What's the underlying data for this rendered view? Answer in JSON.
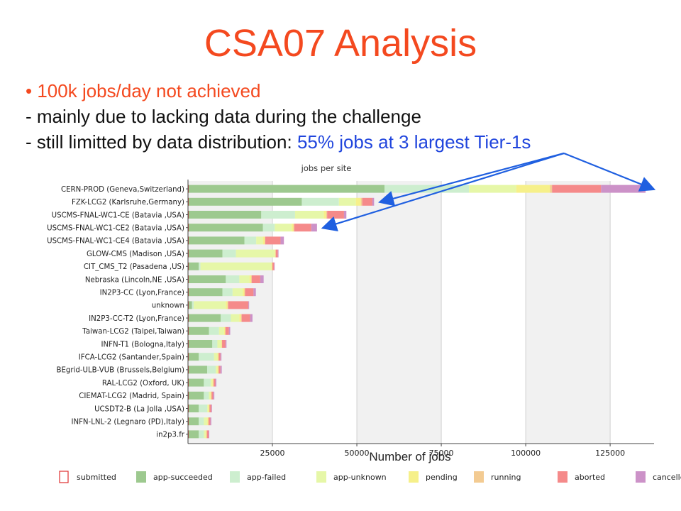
{
  "slide": {
    "title": "CSA07 Analysis",
    "bullet_marker": "•",
    "bullet_1": "100k jobs/day not achieved",
    "line_2": "- mainly due to lacking data during the challenge",
    "line_3_prefix": "- still limitted by data distribution: ",
    "line_3_highlight": "55% jobs at 3 largest Tier-1s"
  },
  "colors": {
    "title": "#f4491f",
    "highlight": "#2045dd",
    "arrow": "#1f5fe0"
  },
  "chart_data": {
    "type": "bar",
    "orientation": "horizontal",
    "stacked": true,
    "title": "jobs per site",
    "xlabel": "Number of jobs",
    "xlim": [
      0,
      138000
    ],
    "xticks": [
      25000,
      50000,
      75000,
      100000,
      125000
    ],
    "grid": true,
    "legend_position": "bottom",
    "categories": [
      "CERN-PROD (Geneva,Switzerland)",
      "FZK-LCG2 (Karlsruhe,Germany)",
      "USCMS-FNAL-WC1-CE (Batavia ,USA)",
      "USCMS-FNAL-WC1-CE2 (Batavia ,USA)",
      "USCMS-FNAL-WC1-CE4 (Batavia ,USA)",
      "GLOW-CMS (Madison ,USA)",
      "CIT_CMS_T2 (Pasadena ,US)",
      "Nebraska (Lincoln,NE ,USA)",
      "IN2P3-CC (Lyon,France)",
      "unknown",
      "IN2P3-CC-T2 (Lyon,France)",
      "Taiwan-LCG2 (Taipei,Taiwan)",
      "INFN-T1 (Bologna,Italy)",
      "IFCA-LCG2 (Santander,Spain)",
      "BEgrid-ULB-VUB (Brussels,Belgium)",
      "RAL-LCG2 (Oxford, UK)",
      "CIEMAT-LCG2 (Madrid, Spain)",
      "UCSDT2-B (La Jolla ,USA)",
      "INFN-LNL-2 (Legnaro (PD),Italy)",
      "in2p3.fr"
    ],
    "series": [
      {
        "name": "submitted",
        "color": "#e03030",
        "values": [
          200,
          200,
          200,
          200,
          200,
          200,
          200,
          200,
          200,
          200,
          200,
          200,
          200,
          200,
          200,
          200,
          200,
          200,
          200,
          200
        ]
      },
      {
        "name": "app-succeeded",
        "color": "#9dc98f",
        "values": [
          58000,
          33500,
          21500,
          22000,
          16500,
          10000,
          3000,
          11000,
          10000,
          1000,
          9500,
          6000,
          7000,
          3000,
          5500,
          4500,
          4500,
          3000,
          3000,
          3000
        ]
      },
      {
        "name": "app-failed",
        "color": "#cdeecf",
        "values": [
          25000,
          11000,
          10000,
          3500,
          3500,
          4000,
          500,
          4000,
          3000,
          500,
          3000,
          3000,
          1500,
          4500,
          2500,
          2000,
          1500,
          2500,
          1500,
          1500
        ]
      },
      {
        "name": "app-unknown",
        "color": "#e6f7a8",
        "values": [
          14000,
          5000,
          8500,
          5000,
          2000,
          11500,
          21000,
          3000,
          3000,
          9500,
          2500,
          1500,
          1000,
          1000,
          500,
          500,
          400,
          300,
          1000,
          500
        ]
      },
      {
        "name": "pending",
        "color": "#f6f08a",
        "values": [
          10000,
          1500,
          700,
          500,
          500,
          200,
          200,
          500,
          500,
          500,
          500,
          300,
          300,
          300,
          300,
          300,
          300,
          300,
          300,
          300
        ]
      },
      {
        "name": "running",
        "color": "#f3cb92",
        "values": [
          600,
          400,
          300,
          300,
          200,
          100,
          100,
          200,
          200,
          200,
          200,
          100,
          100,
          100,
          100,
          100,
          100,
          100,
          100,
          100
        ]
      },
      {
        "name": "aborted",
        "color": "#f58a8a",
        "values": [
          14500,
          3000,
          5000,
          5000,
          4500,
          600,
          500,
          2500,
          2500,
          6000,
          2500,
          1000,
          1000,
          500,
          500,
          500,
          500,
          500,
          500,
          500
        ]
      },
      {
        "name": "cancelled",
        "color": "#cc92c8",
        "values": [
          13200,
          500,
          700,
          1700,
          1000,
          200,
          100,
          1000,
          700,
          200,
          700,
          400,
          300,
          300,
          400,
          300,
          300,
          200,
          300,
          200
        ]
      }
    ],
    "annotations": [
      {
        "target": "CERN-PROD (Geneva,Switzerland)",
        "type": "arrow"
      },
      {
        "target": "FZK-LCG2 (Karlsruhe,Germany)",
        "type": "arrow"
      },
      {
        "target": "USCMS-FNAL-WC1-CE2 (Batavia ,USA)",
        "type": "arrow"
      }
    ]
  }
}
